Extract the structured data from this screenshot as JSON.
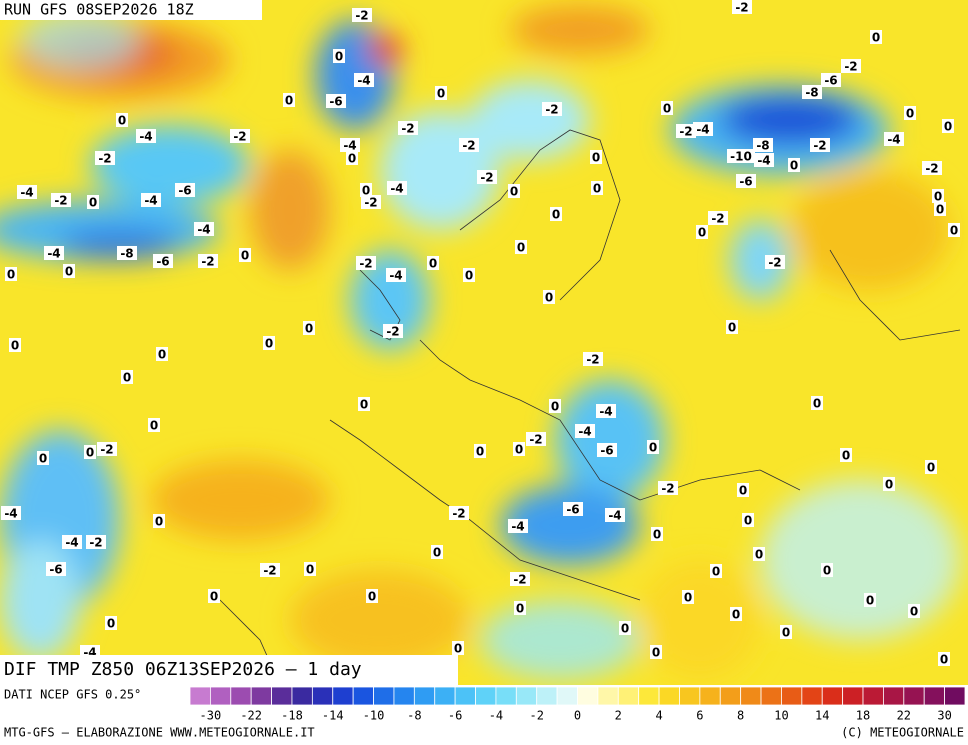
{
  "header": {
    "run": "RUN GFS 08SEP2026 18Z",
    "title": "DIF TMP Z850 06Z13SEP2026 – 1 day"
  },
  "footer": {
    "source": "DATI NCEP GFS 0.25°",
    "credit": "MTG-GFS – ELABORAZIONE WWW.METEOGIORNALE.IT",
    "copyright": "(C) METEOGIORNALE"
  },
  "colorbar": {
    "colors": [
      "#c77bd0",
      "#b060c0",
      "#9c4cb0",
      "#7e3aa0",
      "#5a2d9a",
      "#3a2aa0",
      "#2a30b8",
      "#1e3fd0",
      "#1a55e0",
      "#1f6ee8",
      "#2585ef",
      "#2f9cf3",
      "#3cb0f5",
      "#4cc2f7",
      "#5fd2f8",
      "#78def8",
      "#98e8f8",
      "#bdf1f8",
      "#e0f8f8",
      "#fffde0",
      "#fff7a8",
      "#fff176",
      "#fde83a",
      "#fbd825",
      "#f8c61f",
      "#f6b21c",
      "#f39e1a",
      "#f08a18",
      "#ec7217",
      "#e85c16",
      "#e34416",
      "#da2e1a",
      "#cc2025",
      "#bb1a35",
      "#a81645",
      "#961352",
      "#84105c",
      "#700c60"
    ],
    "ticks": [
      -30,
      -22,
      -18,
      -14,
      -10,
      -8,
      -6,
      -4,
      -2,
      0,
      2,
      4,
      6,
      8,
      10,
      14,
      18,
      22,
      30
    ]
  },
  "contour_labels": [
    -2,
    -2,
    0,
    -2,
    -6,
    -8,
    0,
    0,
    -4,
    -2,
    -4,
    -8,
    -10,
    -4,
    -6,
    -2,
    0,
    -2,
    0,
    0,
    0,
    -2,
    0,
    -2,
    0,
    0,
    0,
    0,
    -2,
    -2,
    0,
    0,
    0,
    -2,
    -2,
    0,
    0,
    -4,
    -6,
    0,
    -4,
    0,
    -4,
    -2,
    0,
    -2,
    0,
    -4,
    -2,
    -4,
    -2,
    0,
    -6,
    -4,
    -4,
    -4,
    -8,
    -6,
    -2,
    0,
    0,
    0,
    -2,
    -4,
    0,
    0,
    0,
    0,
    -2,
    0,
    0,
    0,
    0,
    0,
    0,
    -2,
    0,
    -4,
    -4,
    -6,
    -2,
    0,
    0,
    0,
    0,
    0,
    -2,
    -2,
    0,
    0,
    0,
    0,
    0,
    -4,
    0,
    -2,
    -4,
    -6,
    -4,
    0,
    0,
    -4,
    -2,
    -6,
    0,
    0,
    -2,
    0,
    -2,
    0,
    0,
    0,
    0,
    0,
    0,
    0,
    0,
    0,
    0,
    0,
    0,
    0,
    0,
    -4,
    0
  ]
}
